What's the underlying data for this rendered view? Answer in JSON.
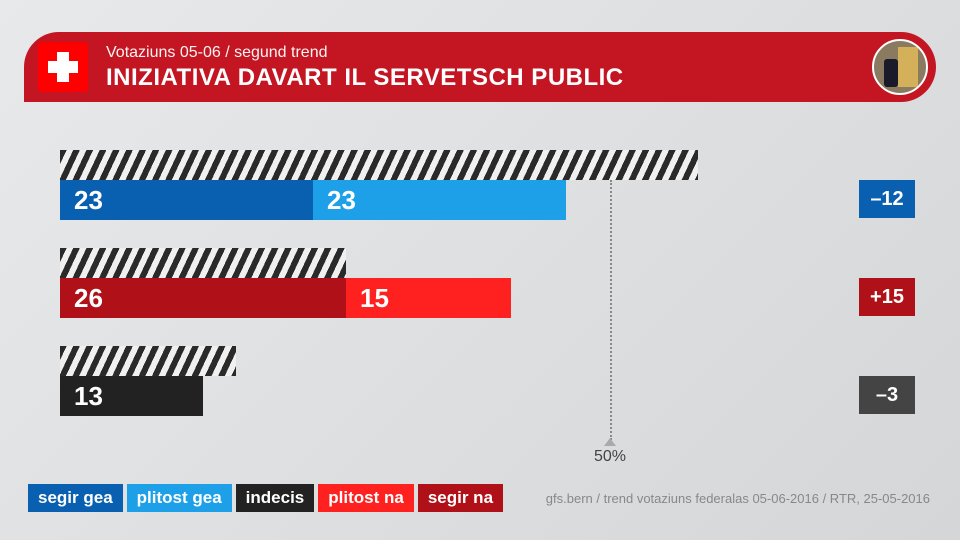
{
  "header": {
    "subtitle": "Votaziuns 05-06 / segund trend",
    "title": "INIZIATIVA DAVART IL SERVETSCH PUBLIC"
  },
  "chart": {
    "scale": 11.0,
    "fifty_marker": {
      "percent": 50,
      "label": "50%"
    },
    "groups": [
      {
        "label": "gea",
        "shadow": 58,
        "segments": [
          {
            "value": 23,
            "color": "#0a60b0"
          },
          {
            "value": 23,
            "color": "#1ea0e8"
          }
        ],
        "delta": {
          "text": "–12",
          "color": "#0a60b0"
        }
      },
      {
        "label": "na",
        "shadow": 26,
        "segments": [
          {
            "value": 26,
            "color": "#b01018"
          },
          {
            "value": 15,
            "color": "#ff2020"
          }
        ],
        "delta": {
          "text": "+15",
          "color": "#b01018"
        }
      },
      {
        "label": "indecis",
        "shadow": 16,
        "segments": [
          {
            "value": 13,
            "color": "#222222"
          }
        ],
        "delta": {
          "text": "–3",
          "color": "#444444"
        }
      }
    ]
  },
  "legend": [
    {
      "label": "segir gea",
      "color": "#0a60b0"
    },
    {
      "label": "plitost gea",
      "color": "#1ea0e8"
    },
    {
      "label": "indecis",
      "color": "#222222"
    },
    {
      "label": "plitost na",
      "color": "#ff2020"
    },
    {
      "label": "segir na",
      "color": "#b01018"
    }
  ],
  "credit": "gfs.bern / trend votaziuns federalas 05-06-2016 / RTR, 25-05-2016"
}
